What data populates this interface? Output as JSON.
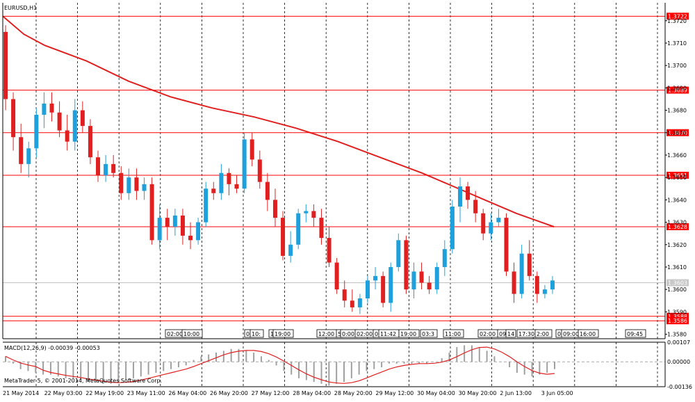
{
  "chart_data": [
    {
      "type": "candlestick",
      "symbol_label": "EURUSD,H1",
      "ylim": [
        1.3578,
        1.3728
      ],
      "y_ticks": [
        "1.3720",
        "1.3710",
        "1.3700",
        "1.3690",
        "1.3680",
        "1.3670",
        "1.3660",
        "1.3650",
        "1.3640",
        "1.3630",
        "1.3620",
        "1.3610",
        "1.3600",
        "1.3590",
        "1.3580"
      ],
      "y_tick_values": [
        1.372,
        1.371,
        1.37,
        1.369,
        1.368,
        1.367,
        1.366,
        1.365,
        1.364,
        1.363,
        1.362,
        1.361,
        1.36,
        1.359,
        1.358
      ],
      "x_labels": [
        "21 May 2014",
        "22 May 03:00",
        "22 May 19:00",
        "23 May 11:00",
        "26 May 04:00",
        "26 May 20:00",
        "27 May 12:00",
        "28 May 04:00",
        "28 May 20:00",
        "29 May 12:00",
        "30 May 04:00",
        "30 May 20:00",
        "2 Jun 13:00",
        "3 Jun 05:00"
      ],
      "horizontal_levels": [
        {
          "label": "1.3722",
          "value": 1.3722
        },
        {
          "label": "1.3689",
          "value": 1.3689
        },
        {
          "label": "1.3670",
          "value": 1.367
        },
        {
          "label": "1.3651",
          "value": 1.3651
        },
        {
          "label": "1.3628",
          "value": 1.3628
        },
        {
          "label": "1.3588",
          "value": 1.3588
        },
        {
          "label": "1.3586",
          "value": 1.3586
        }
      ],
      "current_price": {
        "label": "1.3603",
        "value": 1.3603
      },
      "moving_average": [
        [
          0,
          1.3722
        ],
        [
          10,
          1.3714
        ],
        [
          20,
          1.3709
        ],
        [
          40,
          1.3702
        ],
        [
          60,
          1.3693
        ],
        [
          80,
          1.3686
        ],
        [
          100,
          1.3681
        ],
        [
          120,
          1.3677
        ],
        [
          140,
          1.3672
        ],
        [
          160,
          1.3666
        ],
        [
          180,
          1.3659
        ],
        [
          200,
          1.3652
        ],
        [
          215,
          1.3646
        ],
        [
          230,
          1.364
        ],
        [
          245,
          1.3634
        ],
        [
          257,
          1.363
        ],
        [
          263,
          1.3628
        ]
      ],
      "candles": [
        [
          1.3715,
          1.3718,
          1.368,
          1.3685
        ],
        [
          1.3685,
          1.3688,
          1.3662,
          1.3668
        ],
        [
          1.3668,
          1.3674,
          1.3652,
          1.3656
        ],
        [
          1.3656,
          1.3666,
          1.365,
          1.3663
        ],
        [
          1.3663,
          1.3681,
          1.3659,
          1.3678
        ],
        [
          1.3678,
          1.3688,
          1.3672,
          1.3683
        ],
        [
          1.3683,
          1.3688,
          1.3675,
          1.3679
        ],
        [
          1.3679,
          1.3684,
          1.3668,
          1.3671
        ],
        [
          1.3671,
          1.3678,
          1.3662,
          1.3666
        ],
        [
          1.3666,
          1.3685,
          1.3662,
          1.368
        ],
        [
          1.368,
          1.3684,
          1.367,
          1.3673
        ],
        [
          1.3673,
          1.3676,
          1.3656,
          1.3659
        ],
        [
          1.3659,
          1.3662,
          1.3648,
          1.3651
        ],
        [
          1.3651,
          1.366,
          1.3648,
          1.3656
        ],
        [
          1.3656,
          1.366,
          1.365,
          1.3652
        ],
        [
          1.3652,
          1.3655,
          1.364,
          1.3643
        ],
        [
          1.3643,
          1.3654,
          1.364,
          1.365
        ],
        [
          1.365,
          1.3654,
          1.364,
          1.3644
        ],
        [
          1.3644,
          1.365,
          1.364,
          1.3647
        ],
        [
          1.3647,
          1.365,
          1.362,
          1.3622
        ],
        [
          1.3622,
          1.3638,
          1.3618,
          1.3632
        ],
        [
          1.3632,
          1.3636,
          1.3622,
          1.3628
        ],
        [
          1.3628,
          1.3636,
          1.3624,
          1.3633
        ],
        [
          1.3633,
          1.3636,
          1.362,
          1.3624
        ],
        [
          1.3624,
          1.363,
          1.3618,
          1.3622
        ],
        [
          1.3622,
          1.3632,
          1.362,
          1.363
        ],
        [
          1.363,
          1.3648,
          1.3628,
          1.3645
        ],
        [
          1.3645,
          1.3648,
          1.364,
          1.3643
        ],
        [
          1.3643,
          1.3656,
          1.364,
          1.3652
        ],
        [
          1.3652,
          1.3654,
          1.3642,
          1.3647
        ],
        [
          1.3647,
          1.3651,
          1.3643,
          1.3645
        ],
        [
          1.3645,
          1.367,
          1.3643,
          1.3667
        ],
        [
          1.3667,
          1.367,
          1.3655,
          1.3658
        ],
        [
          1.3658,
          1.3662,
          1.3645,
          1.3648
        ],
        [
          1.3648,
          1.3652,
          1.3635,
          1.364
        ],
        [
          1.364,
          1.3645,
          1.3628,
          1.3632
        ],
        [
          1.3632,
          1.3635,
          1.3613,
          1.3615
        ],
        [
          1.3615,
          1.3626,
          1.3612,
          1.362
        ],
        [
          1.362,
          1.3636,
          1.3618,
          1.3634
        ],
        [
          1.3634,
          1.3638,
          1.363,
          1.3635
        ],
        [
          1.3635,
          1.3638,
          1.3628,
          1.3632
        ],
        [
          1.3632,
          1.3636,
          1.362,
          1.3623
        ],
        [
          1.3623,
          1.3628,
          1.361,
          1.3612
        ],
        [
          1.3612,
          1.3614,
          1.3598,
          1.36
        ],
        [
          1.36,
          1.3604,
          1.3592,
          1.3595
        ],
        [
          1.3595,
          1.36,
          1.359,
          1.3592
        ],
        [
          1.3592,
          1.3598,
          1.3589,
          1.3596
        ],
        [
          1.3596,
          1.3606,
          1.3594,
          1.3604
        ],
        [
          1.3604,
          1.361,
          1.36,
          1.3606
        ],
        [
          1.3606,
          1.3608,
          1.3592,
          1.3594
        ],
        [
          1.3594,
          1.3612,
          1.359,
          1.361
        ],
        [
          1.361,
          1.3625,
          1.3608,
          1.3622
        ],
        [
          1.3622,
          1.3624,
          1.3598,
          1.36
        ],
        [
          1.36,
          1.3612,
          1.3596,
          1.3608
        ],
        [
          1.3608,
          1.3612,
          1.36,
          1.3603
        ],
        [
          1.3603,
          1.3606,
          1.3598,
          1.36
        ],
        [
          1.36,
          1.3612,
          1.3598,
          1.361
        ],
        [
          1.361,
          1.3622,
          1.3606,
          1.3618
        ],
        [
          1.3618,
          1.364,
          1.3616,
          1.3637
        ],
        [
          1.3637,
          1.365,
          1.363,
          1.3646
        ],
        [
          1.3646,
          1.3648,
          1.3636,
          1.364
        ],
        [
          1.364,
          1.3644,
          1.363,
          1.3634
        ],
        [
          1.3634,
          1.3636,
          1.3622,
          1.3625
        ],
        [
          1.3625,
          1.3634,
          1.3622,
          1.363
        ],
        [
          1.363,
          1.3636,
          1.3628,
          1.3632
        ],
        [
          1.3632,
          1.3634,
          1.3606,
          1.3608
        ],
        [
          1.3608,
          1.3612,
          1.3594,
          1.3598
        ],
        [
          1.3598,
          1.362,
          1.3596,
          1.3616
        ],
        [
          1.3616,
          1.3622,
          1.3604,
          1.3606
        ],
        [
          1.3606,
          1.3608,
          1.3594,
          1.3598
        ],
        [
          1.3598,
          1.3602,
          1.3596,
          1.36
        ],
        [
          1.36,
          1.3606,
          1.3598,
          1.3604
        ]
      ]
    },
    {
      "type": "histogram",
      "indicator_label": "MACD(12,26,9) -0.00039 -0.00053",
      "ylim": [
        -0.00136,
        0.00107
      ],
      "y_ticks": [
        "0.00107",
        "0.00000",
        "-0.00136"
      ],
      "y_tick_values": [
        0.00107,
        0.0,
        -0.00136
      ],
      "histogram": [
        0.0003,
        -0.0001,
        -0.0004,
        -0.0005,
        -0.0006,
        -0.0007,
        -0.0007,
        -0.0008,
        -0.0009,
        -0.0009,
        -0.001,
        -0.0011,
        -0.0011,
        -0.0012,
        -0.0012,
        -0.0011,
        -0.001,
        -0.0009,
        -0.0008,
        -0.0007,
        -0.0006,
        -0.0005,
        -0.0004,
        -0.0003,
        -0.0002,
        0.0001,
        0.0003,
        0.0004,
        0.0005,
        0.0006,
        0.0007,
        0.0007,
        0.0006,
        0.0005,
        0.0003,
        0.0001,
        -0.0002,
        -0.0005,
        -0.0007,
        -0.0009,
        -0.001,
        -0.0011,
        -0.0012,
        -0.0013,
        -0.0012,
        -0.0011,
        -0.0009,
        -0.0007,
        -0.0005,
        -0.0004,
        -0.0003,
        -0.0001,
        -0.0001,
        -0.0001,
        -0.0001,
        -0.0001,
        -0.0001,
        0.0,
        0.0002,
        0.0005,
        0.0008,
        0.0009,
        0.0009,
        0.0008,
        0.0006,
        0.0003,
        0.0,
        -0.0003,
        -0.0006,
        -0.0007,
        -0.0008,
        -0.0007,
        -0.0006,
        -0.0004
      ]
    }
  ],
  "ui": {
    "time_markers": [
      "02:00",
      "10:00",
      "0",
      "10:",
      "1",
      "19:00",
      "12:00",
      "5",
      "0:00",
      "02:00",
      "0",
      "11:42",
      "19:00",
      "03:3",
      "11:00",
      "02:00",
      "09:5",
      "14",
      "17:30",
      "2:00",
      "0",
      "09:00",
      "16:00",
      "09:45"
    ],
    "footer_text": "MetaTrader 5, © 2001-2014, MetaQuotes Software Corp."
  },
  "colors": {
    "background": "#ffffff",
    "bull": "#1ea0dc",
    "bear": "#e02020",
    "ma": "#e02020",
    "level": "#ff0000",
    "grid": "#000000",
    "histogram": "#a0a0a0",
    "signal": "#e02020"
  }
}
